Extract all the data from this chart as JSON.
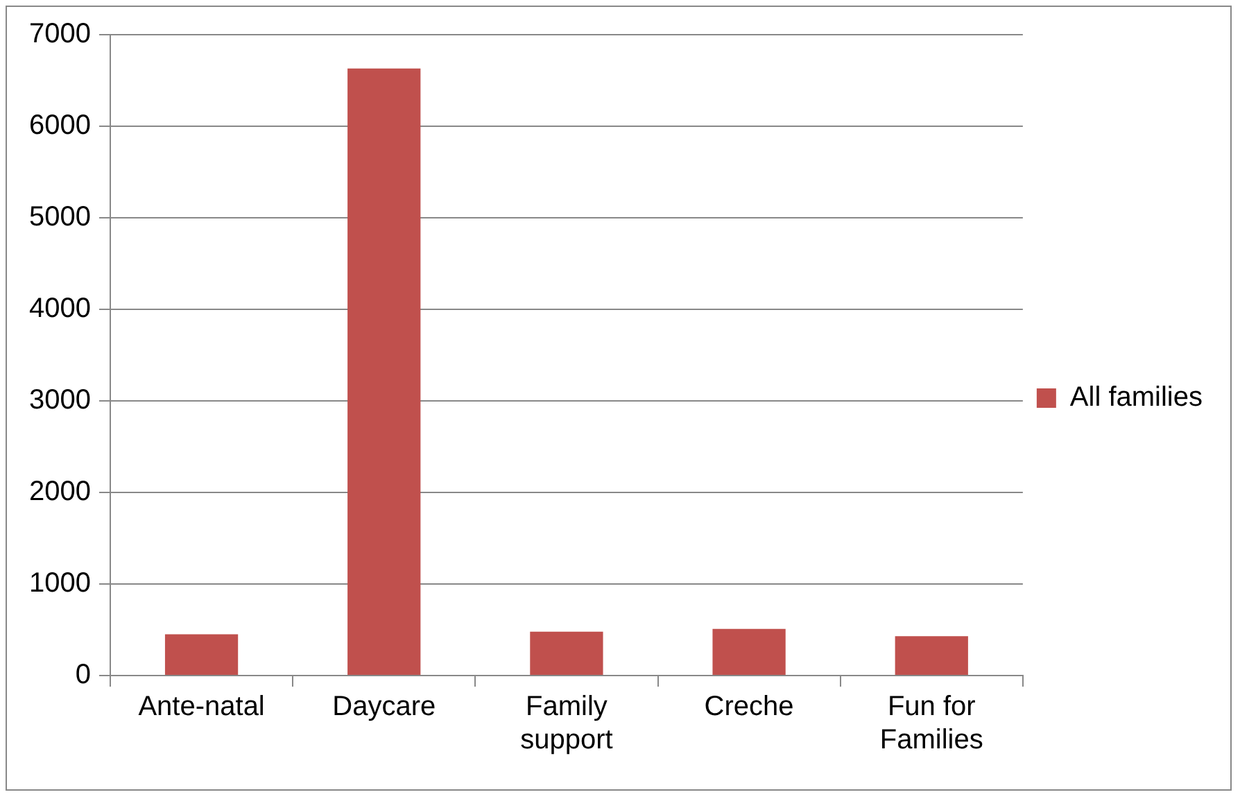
{
  "chart_data": {
    "type": "bar",
    "categories": [
      "Ante-natal",
      "Daycare",
      "Family support",
      "Creche",
      "Fun for Families"
    ],
    "series": [
      {
        "name": "All families",
        "color": "#c0504d",
        "values": [
          450,
          6630,
          480,
          510,
          430
        ]
      }
    ],
    "ylim": [
      0,
      7000
    ],
    "yticks": [
      0,
      1000,
      2000,
      3000,
      4000,
      5000,
      6000,
      7000
    ],
    "grid": "y",
    "legend": "right"
  }
}
